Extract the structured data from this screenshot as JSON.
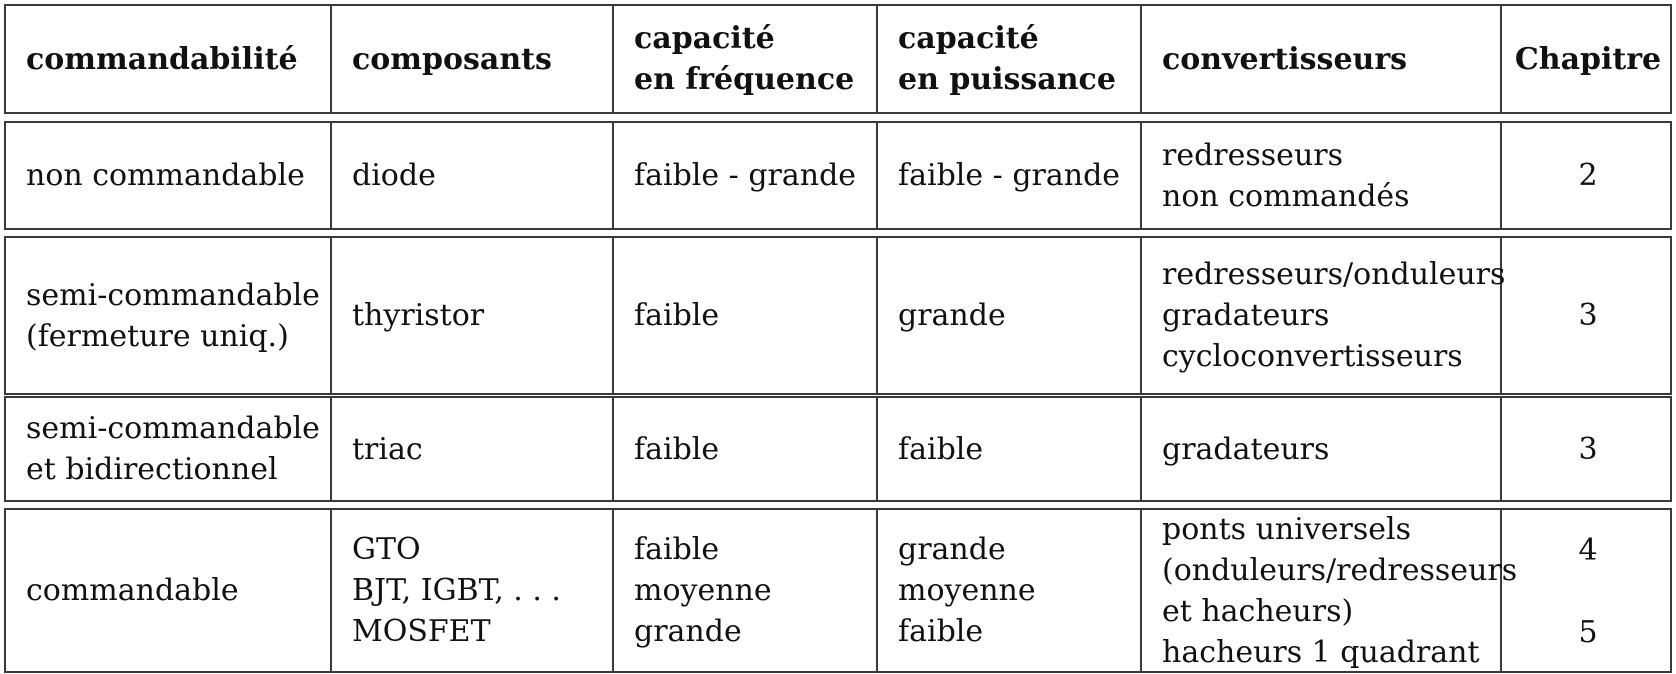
{
  "header": {
    "col1": [
      "commandabilité"
    ],
    "col2": [
      "composants"
    ],
    "col3": [
      "capacité",
      "en fréquence"
    ],
    "col4": [
      "capacité",
      "en puissance"
    ],
    "col5": [
      "convertisseurs"
    ],
    "col6": [
      "Chapitre"
    ]
  },
  "rows": [
    {
      "c1": [
        "non commandable"
      ],
      "c2": [
        "diode"
      ],
      "c3": [
        "faible - grande"
      ],
      "c4": [
        "faible - grande"
      ],
      "c5": [
        "redresseurs",
        "non commandés"
      ],
      "c6": [
        "2"
      ]
    },
    {
      "c1": [
        "semi-commandable",
        "(fermeture uniq.)"
      ],
      "c2": [
        "thyristor"
      ],
      "c3": [
        "faible"
      ],
      "c4": [
        "grande"
      ],
      "c5": [
        "redresseurs/onduleurs",
        "gradateurs",
        "cycloconvertisseurs"
      ],
      "c6": [
        "3"
      ]
    },
    {
      "c1": [
        "semi-commandable",
        "et bidirectionnel"
      ],
      "c2": [
        "triac"
      ],
      "c3": [
        "faible"
      ],
      "c4": [
        "faible"
      ],
      "c5": [
        "gradateurs"
      ],
      "c6": [
        "3"
      ]
    },
    {
      "c1": [
        "commandable"
      ],
      "c2": [
        "GTO",
        "BJT, IGBT, . . .",
        "MOSFET"
      ],
      "c3": [
        "faible",
        "moyenne",
        "grande"
      ],
      "c4": [
        "grande",
        "moyenne",
        "faible"
      ],
      "c5": [
        "ponts universels",
        "(onduleurs/redresseurs",
        "et hacheurs)",
        "hacheurs 1 quadrant"
      ],
      "c6": [
        "4",
        "5"
      ]
    }
  ]
}
